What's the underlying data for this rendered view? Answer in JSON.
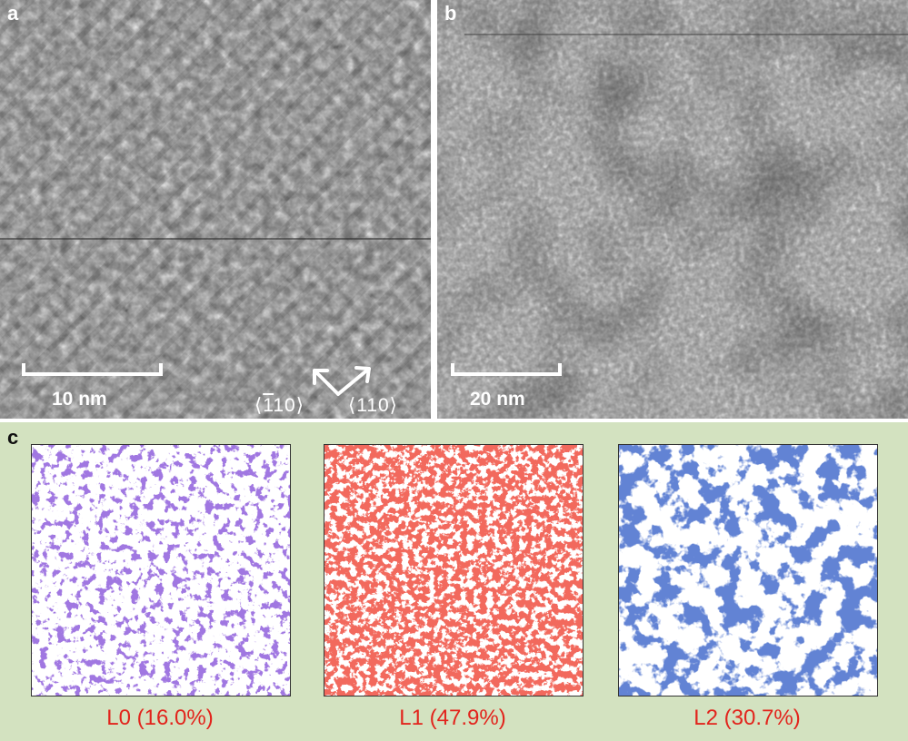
{
  "panel_a": {
    "letter": "a",
    "scalebar_label": "10 nm",
    "direction_1_prefix": "⟨",
    "direction_1_bar": "1",
    "direction_1_suffix": "10⟩",
    "direction_2": "⟨110⟩"
  },
  "panel_b": {
    "letter": "b",
    "scalebar_label": "20 nm"
  },
  "panel_c": {
    "letter": "c",
    "maps": [
      {
        "label": "L0 (16.0%)",
        "color": "#5a2fc0",
        "fraction": 0.16
      },
      {
        "label": "L1 (47.9%)",
        "color": "#e2241c",
        "fraction": 0.479
      },
      {
        "label": "L2 (30.7%)",
        "color": "#1f3aa8",
        "fraction": 0.307
      }
    ],
    "label_color": "#e2241c",
    "background_color": "#d3e2c0"
  }
}
